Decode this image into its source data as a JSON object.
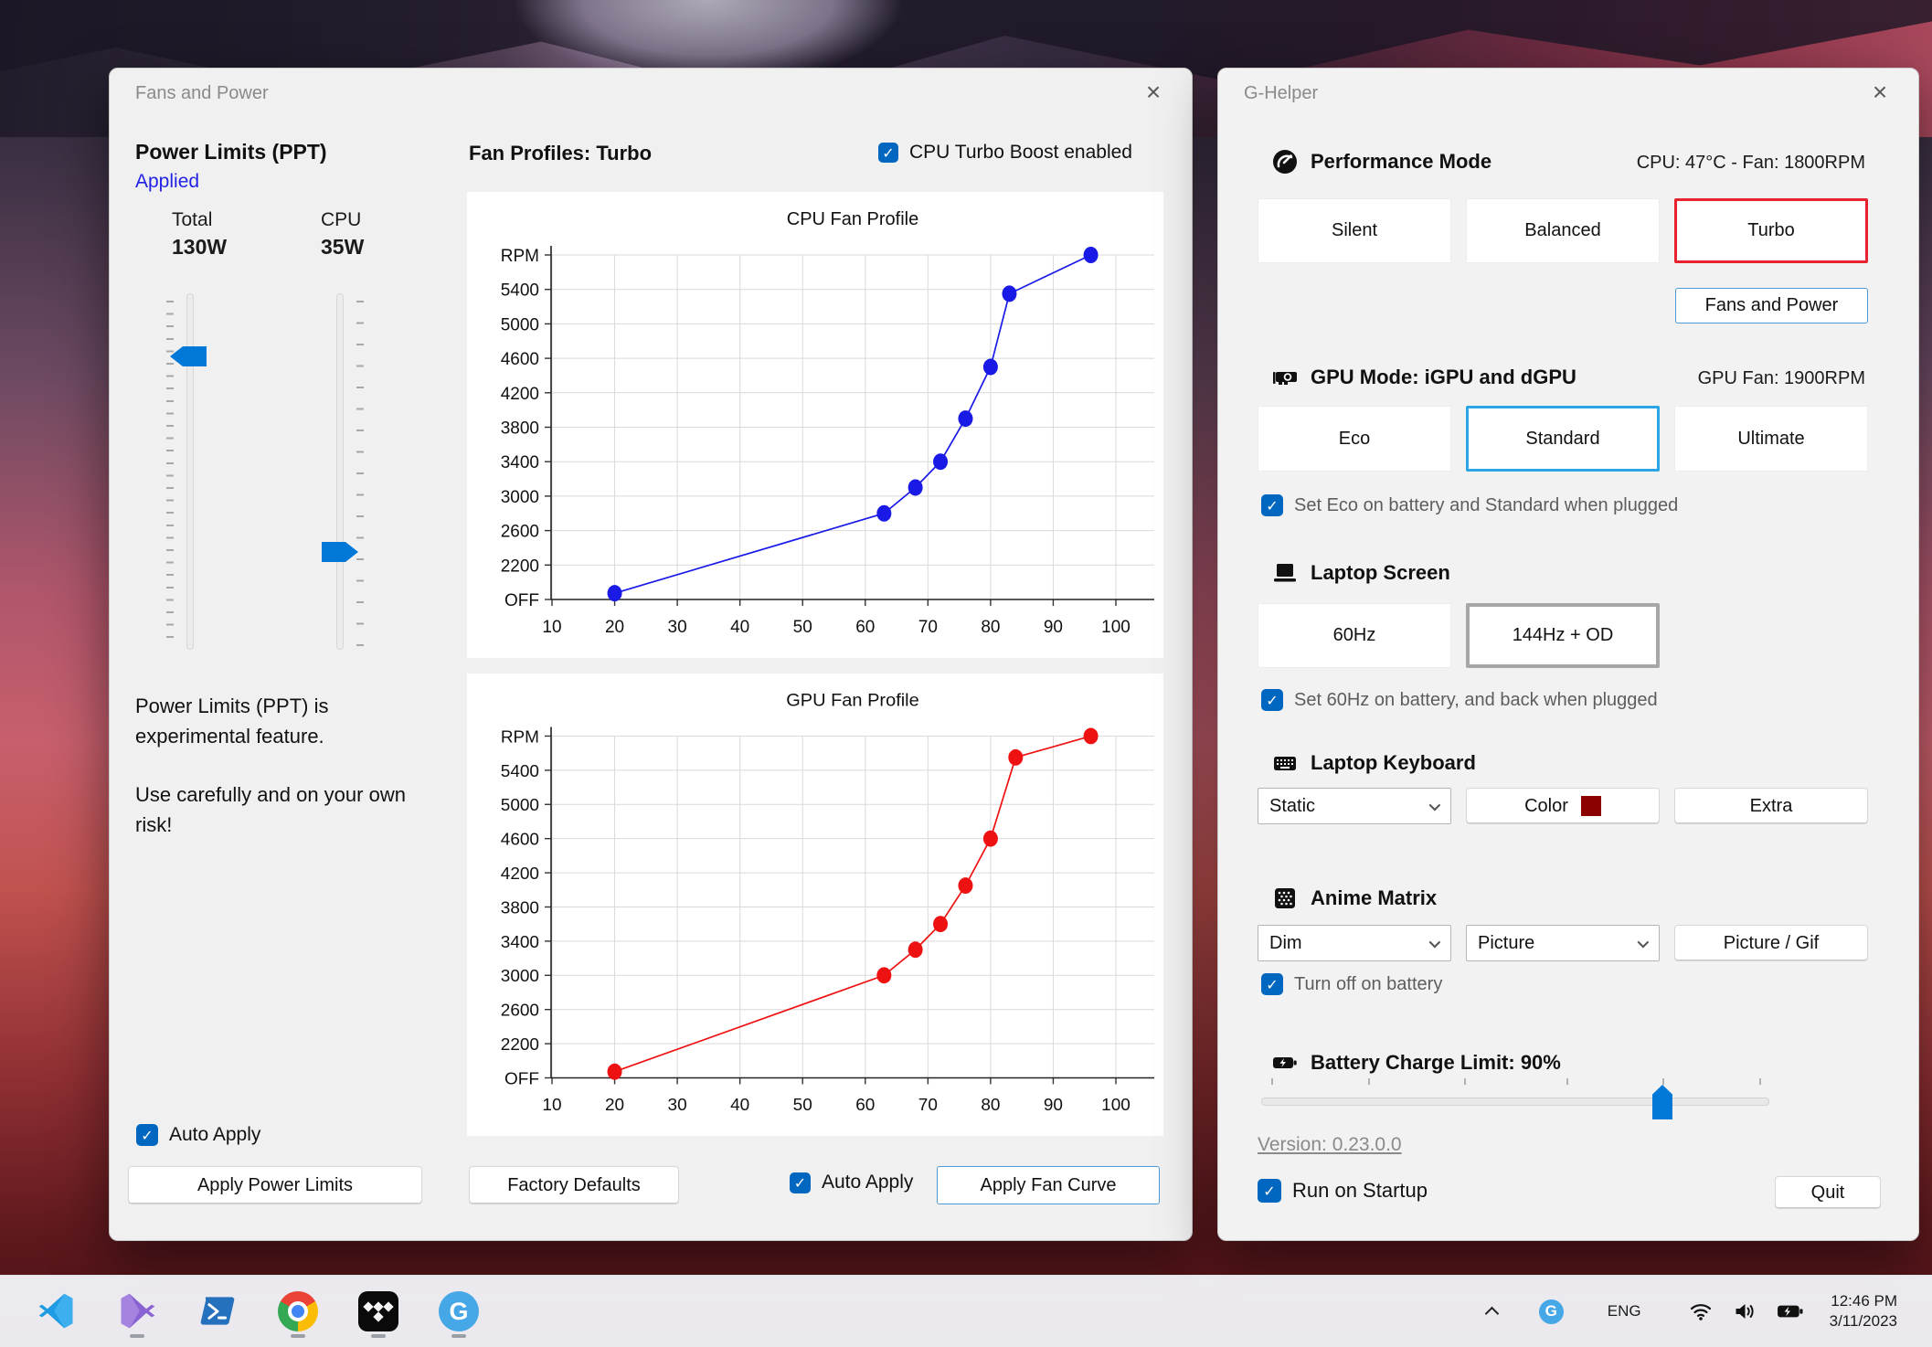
{
  "fans_window": {
    "title": "Fans and Power",
    "power": {
      "heading": "Power Limits (PPT)",
      "status": "Applied",
      "total_label": "Total",
      "total_value": "130W",
      "cpu_label": "CPU",
      "cpu_value": "35W",
      "warning_para1": "Power Limits (PPT) is experimental feature.",
      "warning_para2": "Use carefully and on your own risk!",
      "auto_apply_label": "Auto Apply",
      "apply_button": "Apply Power Limits"
    },
    "profiles": {
      "heading": "Fan Profiles: Turbo",
      "turbo_boost_label": "CPU Turbo Boost enabled",
      "factory_defaults_button": "Factory Defaults",
      "auto_apply_label": "Auto Apply",
      "apply_button": "Apply Fan Curve"
    }
  },
  "chart_data": [
    {
      "type": "line",
      "title": "CPU Fan Profile",
      "color": "#1a1ae6",
      "x": [
        20,
        63,
        68,
        72,
        76,
        80,
        83,
        96
      ],
      "y_rpm": [
        400,
        2800,
        3100,
        3400,
        3900,
        4500,
        5350,
        5800
      ],
      "x_ticks": [
        10,
        20,
        30,
        40,
        50,
        60,
        70,
        80,
        90,
        100
      ],
      "y_axis_labels": [
        "RPM",
        "5400",
        "5000",
        "4600",
        "4200",
        "3800",
        "3400",
        "3000",
        "2600",
        "2200",
        "OFF"
      ],
      "xlim": [
        10,
        100
      ],
      "ylim": [
        0,
        5800
      ],
      "grid": true,
      "legend": "none"
    },
    {
      "type": "line",
      "title": "GPU Fan Profile",
      "color": "#ee1111",
      "x": [
        20,
        63,
        68,
        72,
        76,
        80,
        84,
        96
      ],
      "y_rpm": [
        400,
        3000,
        3300,
        3600,
        4050,
        4600,
        5550,
        5800
      ],
      "x_ticks": [
        10,
        20,
        30,
        40,
        50,
        60,
        70,
        80,
        90,
        100
      ],
      "y_axis_labels": [
        "RPM",
        "5400",
        "5000",
        "4600",
        "4200",
        "3800",
        "3400",
        "3000",
        "2600",
        "2200",
        "OFF"
      ],
      "xlim": [
        10,
        100
      ],
      "ylim": [
        0,
        5800
      ],
      "grid": true,
      "legend": "none"
    }
  ],
  "ghelper_window": {
    "title": "G-Helper",
    "performance": {
      "heading": "Performance Mode",
      "status": "CPU: 47°C -  Fan: 1800RPM",
      "silent": "Silent",
      "balanced": "Balanced",
      "turbo": "Turbo",
      "selected": "Turbo",
      "fans_power_button": "Fans and Power"
    },
    "gpu": {
      "heading": "GPU Mode: iGPU and dGPU",
      "status": "GPU Fan: 1900RPM",
      "eco": "Eco",
      "standard": "Standard",
      "ultimate": "Ultimate",
      "selected": "Standard",
      "checkbox_label": "Set Eco on battery and Standard when plugged"
    },
    "screen": {
      "heading": "Laptop Screen",
      "hz60": "60Hz",
      "hz144": "144Hz + OD",
      "selected": "144Hz + OD",
      "checkbox_label": "Set 60Hz on battery, and back when plugged"
    },
    "keyboard": {
      "heading": "Laptop Keyboard",
      "mode_dropdown": "Static",
      "color_button": "Color",
      "color_swatch": "#8b0000",
      "extra_button": "Extra"
    },
    "matrix": {
      "heading": "Anime Matrix",
      "brightness_dropdown": "Dim",
      "mode_dropdown": "Picture",
      "picture_button": "Picture / Gif",
      "checkbox_label": "Turn off on battery"
    },
    "battery": {
      "heading": "Battery Charge Limit: 90%",
      "slider_percent": 79
    },
    "version_link": "Version: 0.23.0.0",
    "run_on_startup_label": "Run on Startup",
    "quit_button": "Quit"
  },
  "taskbar": {
    "icons": [
      "vscode",
      "visual-studio",
      "powershell",
      "chrome",
      "tidal",
      "g-helper"
    ],
    "tray": {
      "language": "ENG",
      "time": "12:46 PM",
      "date": "3/11/2023"
    }
  },
  "colors": {
    "accent_blue": "#0067c0",
    "slider_blue": "#0078d7",
    "selected_red": "#e8232e",
    "selected_blue": "#2aa5e6",
    "selected_gray": "#a6a6a6",
    "cpu_line": "#1a1ae6",
    "gpu_line": "#ee1111",
    "applied_text": "#2222e6"
  }
}
